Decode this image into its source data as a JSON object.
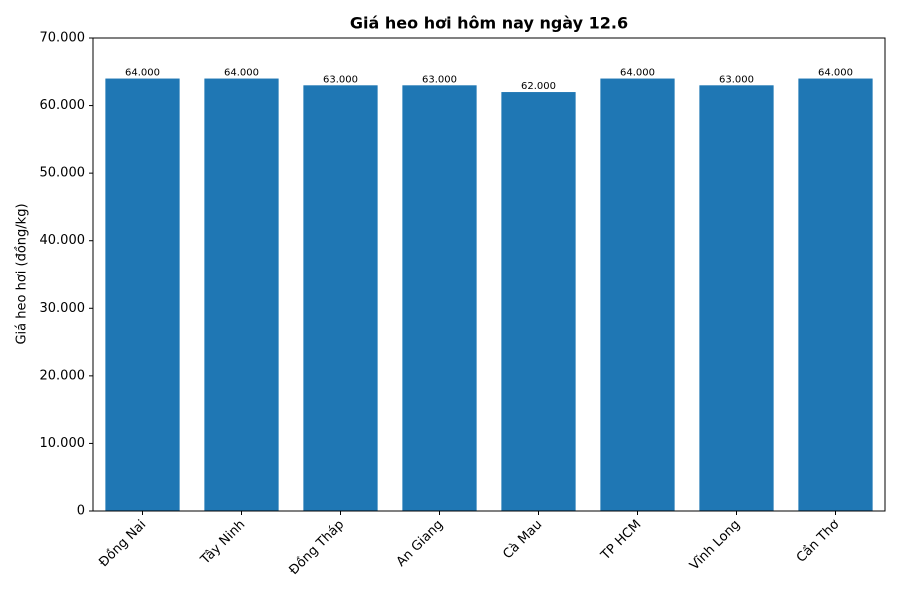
{
  "chart_data": {
    "type": "bar",
    "title": "Giá heo hơi hôm nay ngày 12.6",
    "ylabel": "Giá heo hơi (đồng/kg)",
    "categories": [
      "Đồng Nai",
      "Tây Ninh",
      "Đồng Tháp",
      "An Giang",
      "Cà Mau",
      "TP HCM",
      "Vĩnh Long",
      "Cần Thơ"
    ],
    "values": [
      64000,
      64000,
      63000,
      63000,
      62000,
      64000,
      63000,
      64000
    ],
    "value_labels": [
      "64.000",
      "64.000",
      "63.000",
      "63.000",
      "62.000",
      "64.000",
      "63.000",
      "64.000"
    ],
    "color": "#1f77b4",
    "ylim": [
      0,
      70000
    ],
    "yticks": [
      0,
      {
        "value": 10000,
        "label": "10.000"
      },
      {
        "value": 20000,
        "label": "20.000"
      },
      {
        "value": 30000,
        "label": "30.000"
      },
      {
        "value": 40000,
        "label": "40.000"
      },
      {
        "value": 50000,
        "label": "50.000"
      },
      {
        "value": 60000,
        "label": "60.000"
      },
      {
        "value": 70000,
        "label": "70.000"
      }
    ],
    "grid": false
  }
}
